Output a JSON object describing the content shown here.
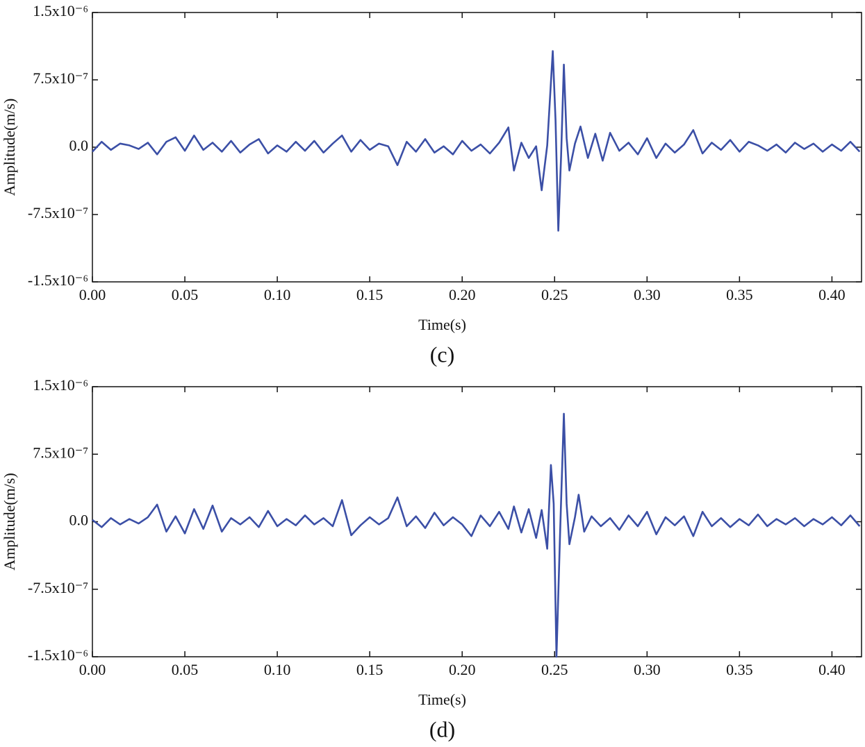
{
  "chart_data": [
    {
      "type": "line",
      "caption": "(c)",
      "x_label": "Time(s)",
      "y_label": "Amplitude(m/s)",
      "color": "#3b4fa6",
      "x": [
        0,
        0.005,
        0.01,
        0.015,
        0.02,
        0.025,
        0.03,
        0.035,
        0.04,
        0.045,
        0.05,
        0.055,
        0.06,
        0.065,
        0.07,
        0.075,
        0.08,
        0.085,
        0.09,
        0.095,
        0.1,
        0.105,
        0.11,
        0.115,
        0.12,
        0.125,
        0.13,
        0.135,
        0.14,
        0.145,
        0.15,
        0.155,
        0.16,
        0.165,
        0.17,
        0.175,
        0.18,
        0.185,
        0.19,
        0.195,
        0.2,
        0.205,
        0.21,
        0.215,
        0.22,
        0.225,
        0.228,
        0.232,
        0.236,
        0.24,
        0.243,
        0.246,
        0.249,
        0.2505,
        0.252,
        0.2535,
        0.255,
        0.2565,
        0.258,
        0.261,
        0.264,
        0.268,
        0.272,
        0.276,
        0.28,
        0.285,
        0.29,
        0.295,
        0.3,
        0.305,
        0.31,
        0.315,
        0.32,
        0.325,
        0.33,
        0.335,
        0.34,
        0.345,
        0.35,
        0.355,
        0.36,
        0.365,
        0.37,
        0.375,
        0.38,
        0.385,
        0.39,
        0.395,
        0.4,
        0.405,
        0.41,
        0.415
      ],
      "values": [
        -5e-08,
        6e-08,
        -3e-08,
        4e-08,
        2e-08,
        -2e-08,
        5e-08,
        -8e-08,
        6e-08,
        1.1e-07,
        -4e-08,
        1.3e-07,
        -3e-08,
        5e-08,
        -5e-08,
        7e-08,
        -6e-08,
        3e-08,
        9e-08,
        -7e-08,
        2e-08,
        -5e-08,
        6e-08,
        -4e-08,
        7e-08,
        -6e-08,
        4e-08,
        1.3e-07,
        -5e-08,
        8e-08,
        -3e-08,
        4e-08,
        1e-08,
        -2e-07,
        6e-08,
        -5e-08,
        9e-08,
        -6e-08,
        1e-08,
        -8e-08,
        7e-08,
        -4e-08,
        3e-08,
        -7e-08,
        5e-08,
        2.2e-07,
        -2.6e-07,
        5e-08,
        -1.2e-07,
        1e-08,
        -4.8e-07,
        2e-08,
        1.07e-06,
        3e-07,
        -9.3e-07,
        -1e-07,
        9.2e-07,
        1e-07,
        -2.6e-07,
        4e-08,
        2.3e-07,
        -1.2e-07,
        1.5e-07,
        -1.5e-07,
        1.6e-07,
        -4e-08,
        5e-08,
        -8e-08,
        1e-07,
        -1.2e-07,
        4e-08,
        -6e-08,
        3e-08,
        1.9e-07,
        -7e-08,
        5e-08,
        -3e-08,
        8e-08,
        -5e-08,
        6e-08,
        2e-08,
        -4e-08,
        3e-08,
        -6e-08,
        5e-08,
        -2e-08,
        4e-08,
        -5e-08,
        3e-08,
        -4e-08,
        6e-08,
        -5e-08
      ],
      "xlim": [
        0,
        0.416
      ],
      "ylim": [
        -1.5e-06,
        1.5e-06
      ],
      "xticks": [
        {
          "value": 0,
          "label": "0.00"
        },
        {
          "value": 0.05,
          "label": "0.05"
        },
        {
          "value": 0.1,
          "label": "0.10"
        },
        {
          "value": 0.15,
          "label": "0.15"
        },
        {
          "value": 0.2,
          "label": "0.20"
        },
        {
          "value": 0.25,
          "label": "0.25"
        },
        {
          "value": 0.3,
          "label": "0.30"
        },
        {
          "value": 0.35,
          "label": "0.35"
        },
        {
          "value": 0.4,
          "label": "0.40"
        }
      ],
      "yticks": [
        {
          "value": -1.5e-06,
          "label": "-1.5x10⁻⁶"
        },
        {
          "value": -7.5e-07,
          "label": "-7.5x10⁻⁷"
        },
        {
          "value": 0,
          "label": "0.0"
        },
        {
          "value": 7.5e-07,
          "label": "7.5x10⁻⁷"
        },
        {
          "value": 1.5e-06,
          "label": "1.5x10⁻⁶"
        }
      ]
    },
    {
      "type": "line",
      "caption": "(d)",
      "x_label": "Time(s)",
      "y_label": "Amplitude(m/s)",
      "color": "#3b4fa6",
      "x": [
        0,
        0.005,
        0.01,
        0.015,
        0.02,
        0.025,
        0.03,
        0.035,
        0.04,
        0.045,
        0.05,
        0.055,
        0.06,
        0.065,
        0.07,
        0.075,
        0.08,
        0.085,
        0.09,
        0.095,
        0.1,
        0.105,
        0.11,
        0.115,
        0.12,
        0.125,
        0.13,
        0.135,
        0.14,
        0.145,
        0.15,
        0.155,
        0.16,
        0.165,
        0.17,
        0.175,
        0.18,
        0.185,
        0.19,
        0.195,
        0.2,
        0.205,
        0.21,
        0.215,
        0.22,
        0.225,
        0.228,
        0.232,
        0.236,
        0.24,
        0.243,
        0.246,
        0.248,
        0.2495,
        0.251,
        0.253,
        0.255,
        0.2565,
        0.258,
        0.261,
        0.263,
        0.266,
        0.27,
        0.275,
        0.28,
        0.285,
        0.29,
        0.295,
        0.3,
        0.305,
        0.31,
        0.315,
        0.32,
        0.325,
        0.33,
        0.335,
        0.34,
        0.345,
        0.35,
        0.355,
        0.36,
        0.365,
        0.37,
        0.375,
        0.38,
        0.385,
        0.39,
        0.395,
        0.4,
        0.405,
        0.41,
        0.415
      ],
      "values": [
        2e-08,
        -6e-08,
        4e-08,
        -3e-08,
        3e-08,
        -2e-08,
        5e-08,
        1.9e-07,
        -1.1e-07,
        6e-08,
        -1.3e-07,
        1.4e-07,
        -8e-08,
        1.8e-07,
        -1.1e-07,
        4e-08,
        -3e-08,
        5e-08,
        -6e-08,
        1.2e-07,
        -5e-08,
        3e-08,
        -4e-08,
        7e-08,
        -3e-08,
        4e-08,
        -5e-08,
        2.4e-07,
        -1.5e-07,
        -4e-08,
        5e-08,
        -3e-08,
        4e-08,
        2.7e-07,
        -5e-08,
        6e-08,
        -7e-08,
        1e-07,
        -4e-08,
        5e-08,
        -3e-08,
        -1.6e-07,
        7e-08,
        -5e-08,
        1.1e-07,
        -8e-08,
        1.7e-07,
        -1.2e-07,
        1.4e-07,
        -1.8e-07,
        1.3e-07,
        -3e-07,
        6.3e-07,
        2e-07,
        -1.5e-06,
        -1e-07,
        1.2e-06,
        2e-07,
        -2.5e-07,
        5e-08,
        3e-07,
        -1.1e-07,
        6e-08,
        -5e-08,
        4e-08,
        -9e-08,
        7e-08,
        -5e-08,
        1.1e-07,
        -1.4e-07,
        5e-08,
        -4e-08,
        6e-08,
        -1.6e-07,
        1.1e-07,
        -5e-08,
        4e-08,
        -6e-08,
        3e-08,
        -4e-08,
        8e-08,
        -5e-08,
        3e-08,
        -3e-08,
        4e-08,
        -5e-08,
        3e-08,
        -3e-08,
        5e-08,
        -4e-08,
        7e-08,
        -5e-08
      ],
      "xlim": [
        0,
        0.416
      ],
      "ylim": [
        -1.5e-06,
        1.5e-06
      ],
      "xticks": [
        {
          "value": 0,
          "label": "0.00"
        },
        {
          "value": 0.05,
          "label": "0.05"
        },
        {
          "value": 0.1,
          "label": "0.10"
        },
        {
          "value": 0.15,
          "label": "0.15"
        },
        {
          "value": 0.2,
          "label": "0.20"
        },
        {
          "value": 0.25,
          "label": "0.25"
        },
        {
          "value": 0.3,
          "label": "0.30"
        },
        {
          "value": 0.35,
          "label": "0.35"
        },
        {
          "value": 0.4,
          "label": "0.40"
        }
      ],
      "yticks": [
        {
          "value": -1.5e-06,
          "label": "-1.5x10⁻⁶"
        },
        {
          "value": -7.5e-07,
          "label": "-7.5x10⁻⁷"
        },
        {
          "value": 0,
          "label": "0.0"
        },
        {
          "value": 7.5e-07,
          "label": "7.5x10⁻⁷"
        },
        {
          "value": 1.5e-06,
          "label": "1.5x10⁻⁶"
        }
      ]
    }
  ]
}
